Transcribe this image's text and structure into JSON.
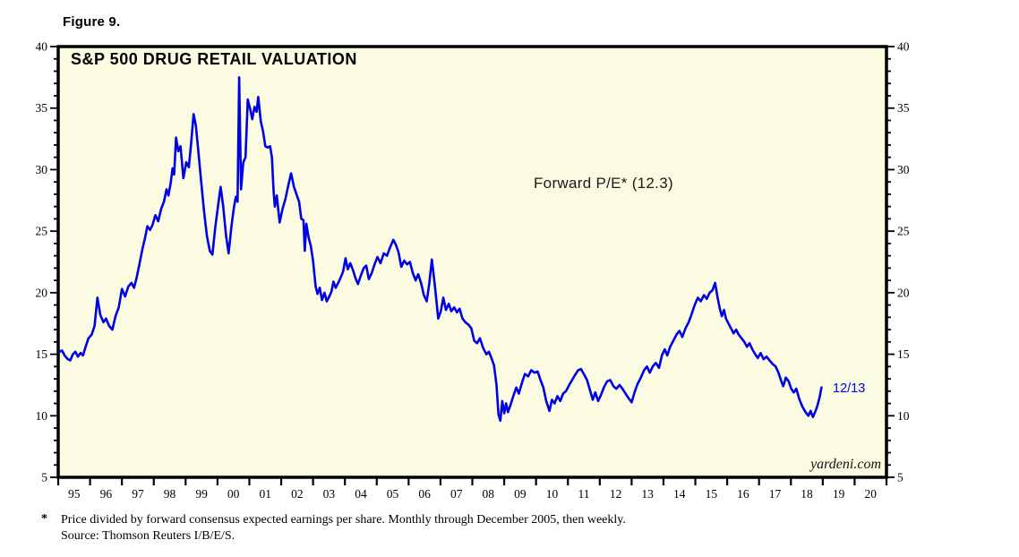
{
  "figure_label": "Figure 9.",
  "chart_title": "S&P 500 DRUG RETAIL VALUATION",
  "annotation": "Forward P/E* (12.3)",
  "end_label": "12/13",
  "watermark": "yardeni.com",
  "footnote_marker": "*",
  "footnote_line1": "Price divided by forward consensus expected earnings per share. Monthly through December 2005, then weekly.",
  "footnote_line2": "Source: Thomson Reuters I/B/E/S.",
  "colors": {
    "line": "#0000E6",
    "plot_bg": "#FBFBE1",
    "frame": "#000000",
    "axis_text": "#000000",
    "annotation_text": "#1a1a1a"
  },
  "chart_data": {
    "type": "line",
    "title": "S&P 500 DRUG RETAIL VALUATION",
    "series_name": "Forward P/E",
    "latest_value": 12.3,
    "latest_date_label": "12/13",
    "x_range": [
      1995,
      2021
    ],
    "y_range": [
      5,
      40
    ],
    "y_major_ticks": [
      5,
      10,
      15,
      20,
      25,
      30,
      35,
      40
    ],
    "y_minor_step": 1,
    "grid": "off",
    "legend": "none",
    "x_tick_labels": [
      "95",
      "96",
      "97",
      "98",
      "99",
      "00",
      "01",
      "02",
      "03",
      "04",
      "05",
      "06",
      "07",
      "08",
      "09",
      "10",
      "11",
      "12",
      "13",
      "14",
      "15",
      "16",
      "17",
      "18",
      "19",
      "20"
    ],
    "points": [
      [
        1995.04,
        15.2
      ],
      [
        1995.12,
        15.3
      ],
      [
        1995.2,
        14.9
      ],
      [
        1995.3,
        14.6
      ],
      [
        1995.38,
        14.5
      ],
      [
        1995.46,
        15.0
      ],
      [
        1995.54,
        15.2
      ],
      [
        1995.62,
        14.8
      ],
      [
        1995.7,
        15.1
      ],
      [
        1995.78,
        14.9
      ],
      [
        1995.86,
        15.6
      ],
      [
        1995.95,
        16.3
      ],
      [
        1996.05,
        16.6
      ],
      [
        1996.14,
        17.3
      ],
      [
        1996.23,
        19.6
      ],
      [
        1996.32,
        18.2
      ],
      [
        1996.42,
        17.6
      ],
      [
        1996.5,
        17.9
      ],
      [
        1996.6,
        17.3
      ],
      [
        1996.7,
        17.0
      ],
      [
        1996.8,
        18.1
      ],
      [
        1996.9,
        18.8
      ],
      [
        1997.0,
        20.3
      ],
      [
        1997.1,
        19.7
      ],
      [
        1997.2,
        20.5
      ],
      [
        1997.3,
        20.8
      ],
      [
        1997.38,
        20.4
      ],
      [
        1997.46,
        21.2
      ],
      [
        1997.55,
        22.3
      ],
      [
        1997.64,
        23.5
      ],
      [
        1997.72,
        24.4
      ],
      [
        1997.8,
        25.4
      ],
      [
        1997.88,
        25.1
      ],
      [
        1997.96,
        25.5
      ],
      [
        1998.05,
        26.3
      ],
      [
        1998.14,
        25.8
      ],
      [
        1998.23,
        26.8
      ],
      [
        1998.32,
        27.4
      ],
      [
        1998.4,
        28.4
      ],
      [
        1998.46,
        27.9
      ],
      [
        1998.53,
        28.9
      ],
      [
        1998.59,
        30.1
      ],
      [
        1998.64,
        29.6
      ],
      [
        1998.7,
        32.6
      ],
      [
        1998.77,
        31.5
      ],
      [
        1998.84,
        31.9
      ],
      [
        1998.93,
        29.3
      ],
      [
        1999.02,
        30.6
      ],
      [
        1999.1,
        30.2
      ],
      [
        1999.17,
        32.1
      ],
      [
        1999.25,
        34.5
      ],
      [
        1999.32,
        33.6
      ],
      [
        1999.4,
        31.5
      ],
      [
        1999.49,
        29.0
      ],
      [
        1999.58,
        26.6
      ],
      [
        1999.67,
        24.6
      ],
      [
        1999.76,
        23.4
      ],
      [
        1999.84,
        23.1
      ],
      [
        1999.93,
        25.3
      ],
      [
        2000.02,
        27.1
      ],
      [
        2000.1,
        28.6
      ],
      [
        2000.18,
        27.0
      ],
      [
        2000.27,
        24.6
      ],
      [
        2000.35,
        23.2
      ],
      [
        2000.44,
        25.4
      ],
      [
        2000.52,
        27.0
      ],
      [
        2000.58,
        27.8
      ],
      [
        2000.63,
        27.4
      ],
      [
        2000.68,
        37.5
      ],
      [
        2000.74,
        28.4
      ],
      [
        2000.81,
        30.6
      ],
      [
        2000.88,
        31.0
      ],
      [
        2000.95,
        35.7
      ],
      [
        2001.03,
        34.9
      ],
      [
        2001.09,
        34.1
      ],
      [
        2001.16,
        35.1
      ],
      [
        2001.23,
        34.7
      ],
      [
        2001.28,
        35.9
      ],
      [
        2001.36,
        33.9
      ],
      [
        2001.43,
        33.1
      ],
      [
        2001.5,
        31.9
      ],
      [
        2001.58,
        31.8
      ],
      [
        2001.65,
        31.9
      ],
      [
        2001.71,
        31.0
      ],
      [
        2001.76,
        28.3
      ],
      [
        2001.8,
        27.0
      ],
      [
        2001.86,
        27.9
      ],
      [
        2001.95,
        25.7
      ],
      [
        2002.04,
        26.8
      ],
      [
        2002.13,
        27.6
      ],
      [
        2002.23,
        28.8
      ],
      [
        2002.31,
        29.7
      ],
      [
        2002.4,
        28.6
      ],
      [
        2002.48,
        28.0
      ],
      [
        2002.56,
        27.4
      ],
      [
        2002.63,
        26.0
      ],
      [
        2002.7,
        25.9
      ],
      [
        2002.74,
        23.4
      ],
      [
        2002.79,
        25.6
      ],
      [
        2002.86,
        24.5
      ],
      [
        2002.93,
        23.8
      ],
      [
        2003.0,
        22.6
      ],
      [
        2003.08,
        20.5
      ],
      [
        2003.14,
        19.9
      ],
      [
        2003.21,
        20.4
      ],
      [
        2003.28,
        19.4
      ],
      [
        2003.36,
        20.0
      ],
      [
        2003.43,
        19.3
      ],
      [
        2003.51,
        19.7
      ],
      [
        2003.58,
        20.1
      ],
      [
        2003.64,
        20.9
      ],
      [
        2003.71,
        20.4
      ],
      [
        2003.79,
        20.8
      ],
      [
        2003.86,
        21.2
      ],
      [
        2003.94,
        21.7
      ],
      [
        2004.02,
        22.8
      ],
      [
        2004.09,
        21.9
      ],
      [
        2004.17,
        22.4
      ],
      [
        2004.26,
        21.8
      ],
      [
        2004.33,
        21.2
      ],
      [
        2004.41,
        20.7
      ],
      [
        2004.5,
        21.4
      ],
      [
        2004.59,
        22.0
      ],
      [
        2004.67,
        22.2
      ],
      [
        2004.75,
        21.1
      ],
      [
        2004.84,
        21.6
      ],
      [
        2004.93,
        22.3
      ],
      [
        2005.02,
        22.9
      ],
      [
        2005.12,
        22.4
      ],
      [
        2005.22,
        23.2
      ],
      [
        2005.32,
        23.0
      ],
      [
        2005.42,
        23.7
      ],
      [
        2005.52,
        24.3
      ],
      [
        2005.6,
        23.9
      ],
      [
        2005.68,
        23.3
      ],
      [
        2005.77,
        22.1
      ],
      [
        2005.86,
        22.6
      ],
      [
        2005.95,
        22.3
      ],
      [
        2006.04,
        22.5
      ],
      [
        2006.13,
        21.6
      ],
      [
        2006.22,
        21.0
      ],
      [
        2006.3,
        21.5
      ],
      [
        2006.39,
        20.8
      ],
      [
        2006.48,
        19.8
      ],
      [
        2006.57,
        19.3
      ],
      [
        2006.65,
        20.8
      ],
      [
        2006.73,
        22.7
      ],
      [
        2006.83,
        20.4
      ],
      [
        2006.93,
        17.9
      ],
      [
        2007.01,
        18.5
      ],
      [
        2007.09,
        19.6
      ],
      [
        2007.17,
        18.6
      ],
      [
        2007.26,
        19.1
      ],
      [
        2007.34,
        18.5
      ],
      [
        2007.43,
        18.8
      ],
      [
        2007.52,
        18.4
      ],
      [
        2007.6,
        18.7
      ],
      [
        2007.69,
        17.9
      ],
      [
        2007.78,
        17.6
      ],
      [
        2007.88,
        17.4
      ],
      [
        2007.97,
        17.1
      ],
      [
        2008.06,
        16.1
      ],
      [
        2008.15,
        15.9
      ],
      [
        2008.24,
        16.3
      ],
      [
        2008.34,
        15.5
      ],
      [
        2008.44,
        15.0
      ],
      [
        2008.52,
        15.2
      ],
      [
        2008.6,
        14.7
      ],
      [
        2008.68,
        14.1
      ],
      [
        2008.76,
        12.5
      ],
      [
        2008.82,
        10.1
      ],
      [
        2008.88,
        9.6
      ],
      [
        2008.94,
        11.2
      ],
      [
        2009.0,
        10.2
      ],
      [
        2009.06,
        11.0
      ],
      [
        2009.12,
        10.3
      ],
      [
        2009.2,
        10.9
      ],
      [
        2009.3,
        11.7
      ],
      [
        2009.38,
        12.3
      ],
      [
        2009.46,
        11.8
      ],
      [
        2009.56,
        12.7
      ],
      [
        2009.65,
        13.4
      ],
      [
        2009.75,
        13.2
      ],
      [
        2009.85,
        13.7
      ],
      [
        2009.95,
        13.5
      ],
      [
        2010.05,
        13.6
      ],
      [
        2010.14,
        12.9
      ],
      [
        2010.23,
        12.3
      ],
      [
        2010.32,
        11.2
      ],
      [
        2010.42,
        10.4
      ],
      [
        2010.5,
        11.3
      ],
      [
        2010.58,
        11.0
      ],
      [
        2010.67,
        11.6
      ],
      [
        2010.76,
        11.2
      ],
      [
        2010.85,
        11.8
      ],
      [
        2010.94,
        12.0
      ],
      [
        2011.04,
        12.5
      ],
      [
        2011.13,
        12.9
      ],
      [
        2011.22,
        13.3
      ],
      [
        2011.32,
        13.7
      ],
      [
        2011.41,
        13.8
      ],
      [
        2011.5,
        13.4
      ],
      [
        2011.6,
        12.9
      ],
      [
        2011.69,
        12.1
      ],
      [
        2011.78,
        11.3
      ],
      [
        2011.86,
        11.9
      ],
      [
        2011.95,
        11.2
      ],
      [
        2012.04,
        11.7
      ],
      [
        2012.13,
        12.3
      ],
      [
        2012.23,
        12.8
      ],
      [
        2012.33,
        12.9
      ],
      [
        2012.43,
        12.4
      ],
      [
        2012.52,
        12.2
      ],
      [
        2012.62,
        12.5
      ],
      [
        2012.71,
        12.2
      ],
      [
        2012.81,
        11.8
      ],
      [
        2012.91,
        11.4
      ],
      [
        2013.0,
        11.1
      ],
      [
        2013.09,
        11.9
      ],
      [
        2013.19,
        12.6
      ],
      [
        2013.29,
        13.1
      ],
      [
        2013.39,
        13.7
      ],
      [
        2013.48,
        14.0
      ],
      [
        2013.57,
        13.5
      ],
      [
        2013.66,
        14.0
      ],
      [
        2013.76,
        14.3
      ],
      [
        2013.86,
        13.9
      ],
      [
        2013.95,
        14.9
      ],
      [
        2014.04,
        15.4
      ],
      [
        2014.12,
        14.9
      ],
      [
        2014.21,
        15.6
      ],
      [
        2014.31,
        16.1
      ],
      [
        2014.41,
        16.6
      ],
      [
        2014.5,
        16.9
      ],
      [
        2014.59,
        16.4
      ],
      [
        2014.69,
        17.1
      ],
      [
        2014.79,
        17.6
      ],
      [
        2014.89,
        18.3
      ],
      [
        2014.98,
        19.0
      ],
      [
        2015.08,
        19.6
      ],
      [
        2015.17,
        19.3
      ],
      [
        2015.27,
        19.8
      ],
      [
        2015.36,
        19.5
      ],
      [
        2015.45,
        20.0
      ],
      [
        2015.54,
        20.2
      ],
      [
        2015.62,
        20.8
      ],
      [
        2015.7,
        19.6
      ],
      [
        2015.77,
        18.7
      ],
      [
        2015.83,
        18.1
      ],
      [
        2015.9,
        18.6
      ],
      [
        2015.96,
        17.9
      ],
      [
        2016.04,
        17.5
      ],
      [
        2016.12,
        17.1
      ],
      [
        2016.2,
        16.7
      ],
      [
        2016.28,
        17.0
      ],
      [
        2016.36,
        16.6
      ],
      [
        2016.45,
        16.3
      ],
      [
        2016.54,
        16.0
      ],
      [
        2016.62,
        15.6
      ],
      [
        2016.7,
        15.9
      ],
      [
        2016.79,
        15.4
      ],
      [
        2016.88,
        15.0
      ],
      [
        2016.96,
        14.7
      ],
      [
        2017.05,
        15.1
      ],
      [
        2017.14,
        14.6
      ],
      [
        2017.24,
        14.8
      ],
      [
        2017.33,
        14.5
      ],
      [
        2017.43,
        14.2
      ],
      [
        2017.52,
        14.0
      ],
      [
        2017.61,
        13.5
      ],
      [
        2017.7,
        12.8
      ],
      [
        2017.76,
        12.4
      ],
      [
        2017.84,
        13.1
      ],
      [
        2017.93,
        12.8
      ],
      [
        2018.01,
        12.2
      ],
      [
        2018.09,
        11.9
      ],
      [
        2018.17,
        12.2
      ],
      [
        2018.27,
        11.3
      ],
      [
        2018.37,
        10.7
      ],
      [
        2018.46,
        10.3
      ],
      [
        2018.55,
        10.0
      ],
      [
        2018.62,
        10.4
      ],
      [
        2018.69,
        9.9
      ],
      [
        2018.76,
        10.3
      ],
      [
        2018.83,
        10.8
      ],
      [
        2018.9,
        11.5
      ],
      [
        2018.96,
        12.3
      ]
    ]
  }
}
